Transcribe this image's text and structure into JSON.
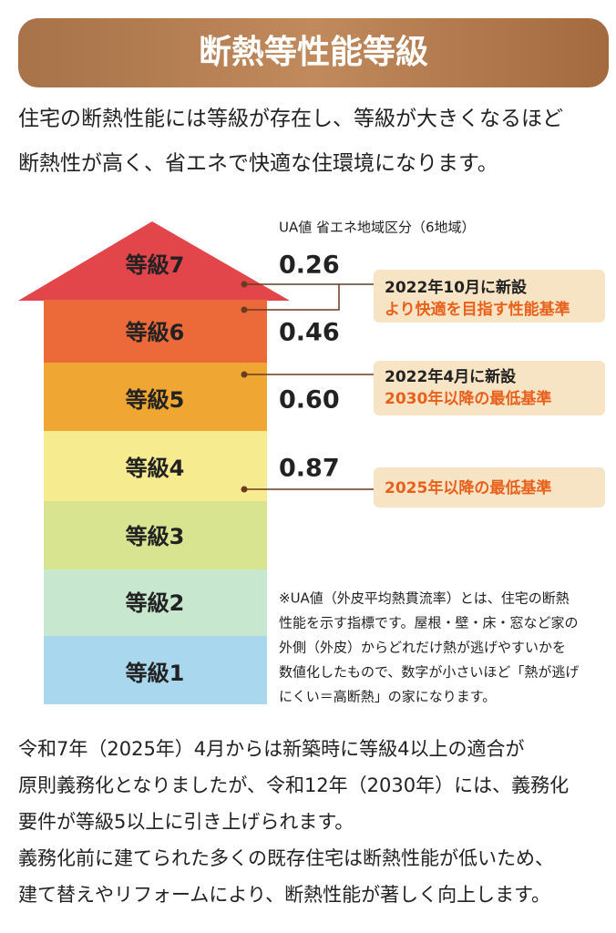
{
  "header": {
    "title": "断熱等性能等級"
  },
  "intro": [
    "住宅の断熱性能には等級が存在し、等級が大きくなるほど",
    "断熱性が高く、省エネで快適な住環境になります。"
  ],
  "ua_header": "UA値 省エネ地域区分（6地域）",
  "grades": [
    {
      "label": "等級7",
      "ua": "0.26"
    },
    {
      "label": "等級6",
      "ua": "0.46"
    },
    {
      "label": "等級5",
      "ua": "0.60"
    },
    {
      "label": "等級4",
      "ua": "0.87"
    },
    {
      "label": "等級3"
    },
    {
      "label": "等級2"
    },
    {
      "label": "等級1"
    }
  ],
  "notes": [
    {
      "lines": [
        "2022年10月に新設",
        "より快適を目指す性能基準"
      ]
    },
    {
      "lines": [
        "2022年4月に新設",
        "2030年以降の最低基準"
      ]
    },
    {
      "lines": [
        "2025年以降の最低基準"
      ]
    }
  ],
  "footnote": [
    "※UA値（外皮平均熱貫流率）とは、住宅の断熱",
    "性能を示す指標です。屋根・壁・床・窓など家の",
    "外側（外皮）からどれだけ熱が逃げやすいかを",
    "数値化したもので、数字が小さいほど「熱が逃げ",
    "にくい＝高断熱」の家になります。"
  ],
  "body": [
    "令和7年（2025年）4月からは新築時に等級4以上の適合が",
    "原則義務化となりましたが、令和12年（2030年）には、義務化",
    "要件が等級5以上に引き上げられます。",
    "義務化前に建てられた多くの既存住宅は断熱性能が低いため、",
    "建て替えやリフォームにより、断熱性能が著しく向上します。"
  ]
}
